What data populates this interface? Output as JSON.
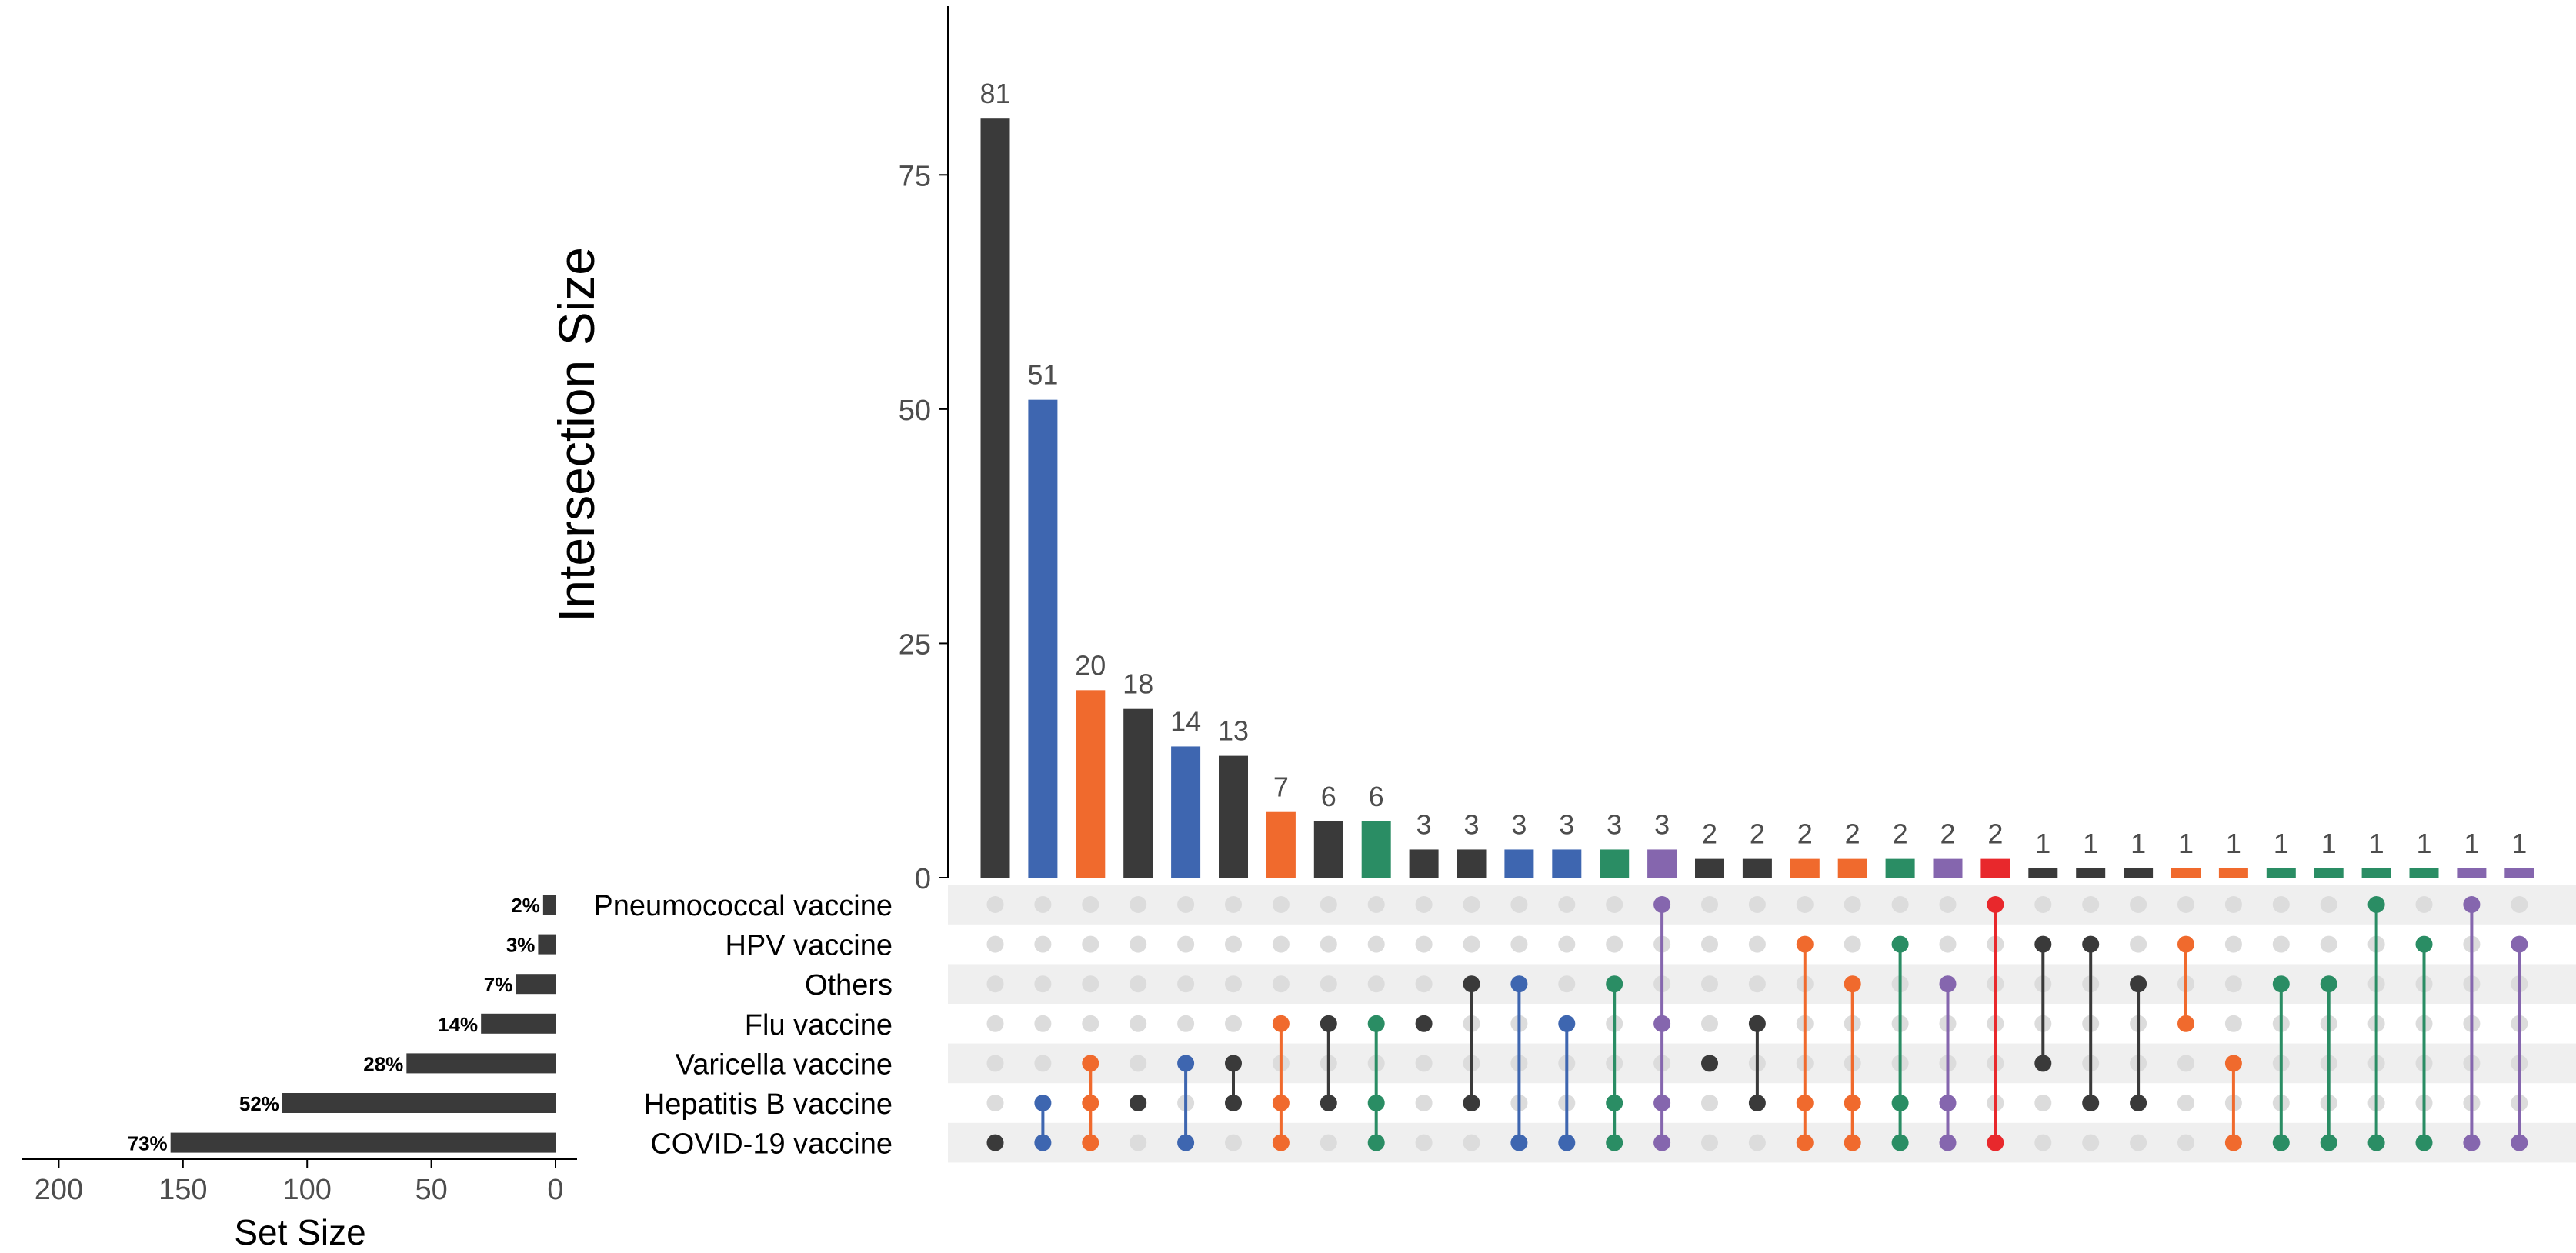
{
  "chart_data": {
    "type": "upset",
    "ylabel": "Intersection Size",
    "xlabel_setsize": "Set Size",
    "y_ticks": [
      0,
      25,
      50,
      75
    ],
    "ylim": [
      0,
      93
    ],
    "setsize_ticks": [
      200,
      150,
      100,
      50,
      0
    ],
    "setsize_xlim": [
      0,
      215
    ],
    "colors": {
      "black": "#3a3a3a",
      "blue": "#3e66b0",
      "orange": "#f06a2d",
      "green": "#2a8d64",
      "purple": "#8566ae",
      "red": "#e8282c",
      "dot_empty": "#dcdcdc",
      "stripe": "#efefef"
    },
    "sets": [
      {
        "name": "Pneumococcal vaccine",
        "size": 5,
        "pct": "2%"
      },
      {
        "name": "HPV vaccine",
        "size": 7,
        "pct": "3%"
      },
      {
        "name": "Others",
        "size": 16,
        "pct": "7%"
      },
      {
        "name": "Flu vaccine",
        "size": 30,
        "pct": "14%"
      },
      {
        "name": "Varicella vaccine",
        "size": 60,
        "pct": "28%"
      },
      {
        "name": "Hepatitis B vaccine",
        "size": 110,
        "pct": "52%"
      },
      {
        "name": "COVID-19 vaccine",
        "size": 155,
        "pct": "73%"
      }
    ],
    "intersections": [
      {
        "size": 81,
        "label": "81",
        "color": "black",
        "members": [
          6
        ]
      },
      {
        "size": 51,
        "label": "51",
        "color": "blue",
        "members": [
          5,
          6
        ]
      },
      {
        "size": 20,
        "label": "20",
        "color": "orange",
        "members": [
          4,
          5,
          6
        ]
      },
      {
        "size": 18,
        "label": "18",
        "color": "black",
        "members": [
          5
        ]
      },
      {
        "size": 14,
        "label": "14",
        "color": "blue",
        "members": [
          4,
          6
        ]
      },
      {
        "size": 13,
        "label": "13",
        "color": "black",
        "members": [
          4,
          5
        ]
      },
      {
        "size": 7,
        "label": "7",
        "color": "orange",
        "members": [
          3,
          5,
          6
        ]
      },
      {
        "size": 6,
        "label": "6",
        "color": "black",
        "members": [
          3,
          5
        ]
      },
      {
        "size": 6,
        "label": "6",
        "color": "green",
        "members": [
          3,
          5,
          6
        ]
      },
      {
        "size": 3,
        "label": "3",
        "color": "black",
        "members": [
          3
        ]
      },
      {
        "size": 3,
        "label": "3",
        "color": "black",
        "members": [
          2,
          5
        ]
      },
      {
        "size": 3,
        "label": "3",
        "color": "blue",
        "members": [
          2,
          6
        ]
      },
      {
        "size": 3,
        "label": "3",
        "color": "blue",
        "members": [
          3,
          6
        ]
      },
      {
        "size": 3,
        "label": "3",
        "color": "green",
        "members": [
          2,
          5,
          6
        ]
      },
      {
        "size": 3,
        "label": "3",
        "color": "purple",
        "members": [
          0,
          3,
          5,
          6
        ]
      },
      {
        "size": 2,
        "label": "2",
        "color": "black",
        "members": [
          4
        ]
      },
      {
        "size": 2,
        "label": "2",
        "color": "black",
        "members": [
          3,
          5
        ]
      },
      {
        "size": 2,
        "label": "2",
        "color": "orange",
        "members": [
          1,
          5,
          6
        ]
      },
      {
        "size": 2,
        "label": "2",
        "color": "orange",
        "members": [
          2,
          5,
          6
        ]
      },
      {
        "size": 2,
        "label": "2",
        "color": "green",
        "members": [
          1,
          5,
          6
        ]
      },
      {
        "size": 2,
        "label": "2",
        "color": "purple",
        "members": [
          2,
          5,
          6
        ]
      },
      {
        "size": 2,
        "label": "2",
        "color": "red",
        "members": [
          0,
          6
        ]
      },
      {
        "size": 1,
        "label": "1",
        "color": "black",
        "members": [
          1,
          4
        ]
      },
      {
        "size": 1,
        "label": "1",
        "color": "black",
        "members": [
          1,
          5
        ]
      },
      {
        "size": 1,
        "label": "1",
        "color": "black",
        "members": [
          2,
          5
        ]
      },
      {
        "size": 1,
        "label": "1",
        "color": "orange",
        "members": [
          1,
          3
        ]
      },
      {
        "size": 1,
        "label": "1",
        "color": "orange",
        "members": [
          4,
          6
        ]
      },
      {
        "size": 1,
        "label": "1",
        "color": "green",
        "members": [
          2,
          6
        ]
      },
      {
        "size": 1,
        "label": "1",
        "color": "green",
        "members": [
          2,
          6
        ]
      },
      {
        "size": 1,
        "label": "1",
        "color": "green",
        "members": [
          0,
          6
        ]
      },
      {
        "size": 1,
        "label": "1",
        "color": "green",
        "members": [
          1,
          6
        ]
      },
      {
        "size": 1,
        "label": "1",
        "color": "purple",
        "members": [
          0,
          6
        ]
      },
      {
        "size": 1,
        "label": "1",
        "color": "purple",
        "members": [
          1,
          6
        ]
      }
    ]
  }
}
